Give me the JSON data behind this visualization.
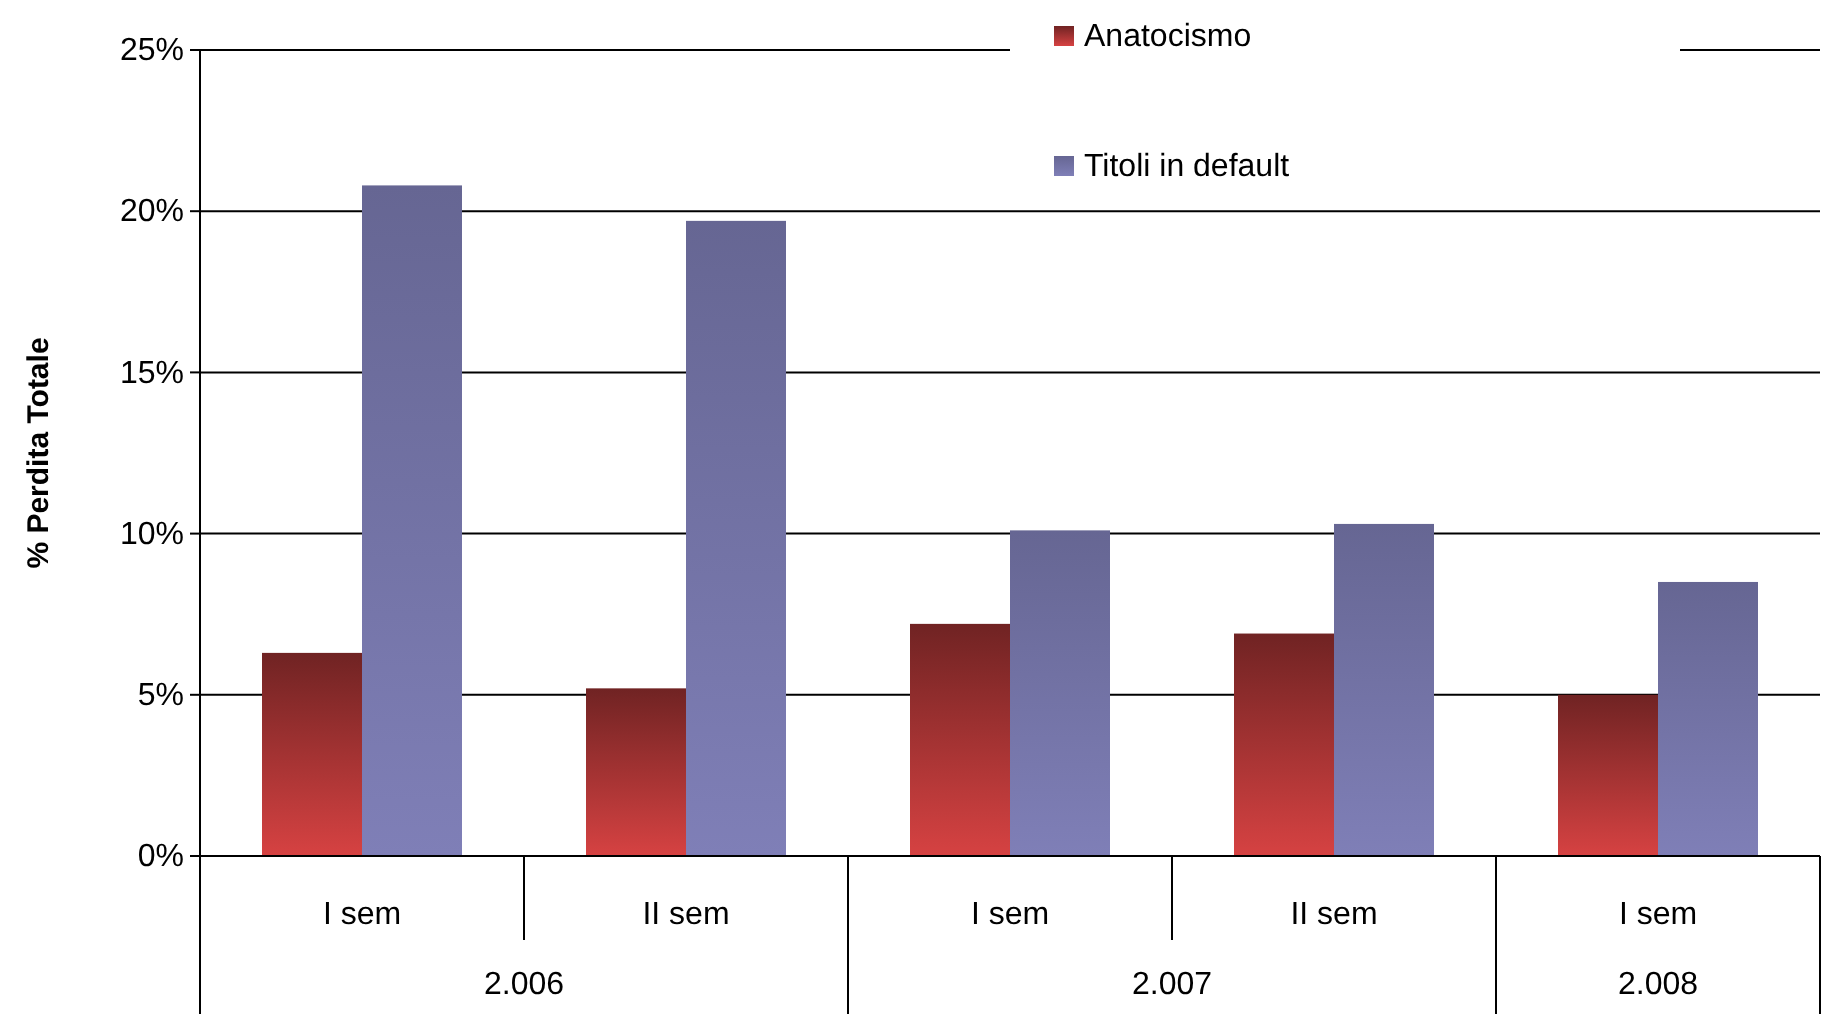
{
  "chart_data": {
    "type": "bar",
    "ylabel": "% Perdita Totale",
    "categories": [
      "I sem",
      "II sem",
      "I sem",
      "II sem",
      "I sem"
    ],
    "series": [
      {
        "name": "Anatocismo",
        "color": "#9b3030",
        "values": [
          6.3,
          5.2,
          7.2,
          6.9,
          5.0
        ]
      },
      {
        "name": "Titoli in default",
        "color": "#7272a4",
        "values": [
          20.8,
          19.7,
          10.1,
          10.3,
          8.5
        ]
      }
    ],
    "ylim": [
      0,
      25
    ],
    "yticks": [
      {
        "value": 0,
        "label": "0%"
      },
      {
        "value": 5,
        "label": "5%"
      },
      {
        "value": 10,
        "label": "10%"
      },
      {
        "value": 15,
        "label": "15%"
      },
      {
        "value": 20,
        "label": "20%"
      },
      {
        "value": 25,
        "label": "25%"
      }
    ],
    "grid": "y",
    "legend": "top right",
    "annotations": [
      "2.006",
      "2.007",
      "2.008"
    ]
  }
}
